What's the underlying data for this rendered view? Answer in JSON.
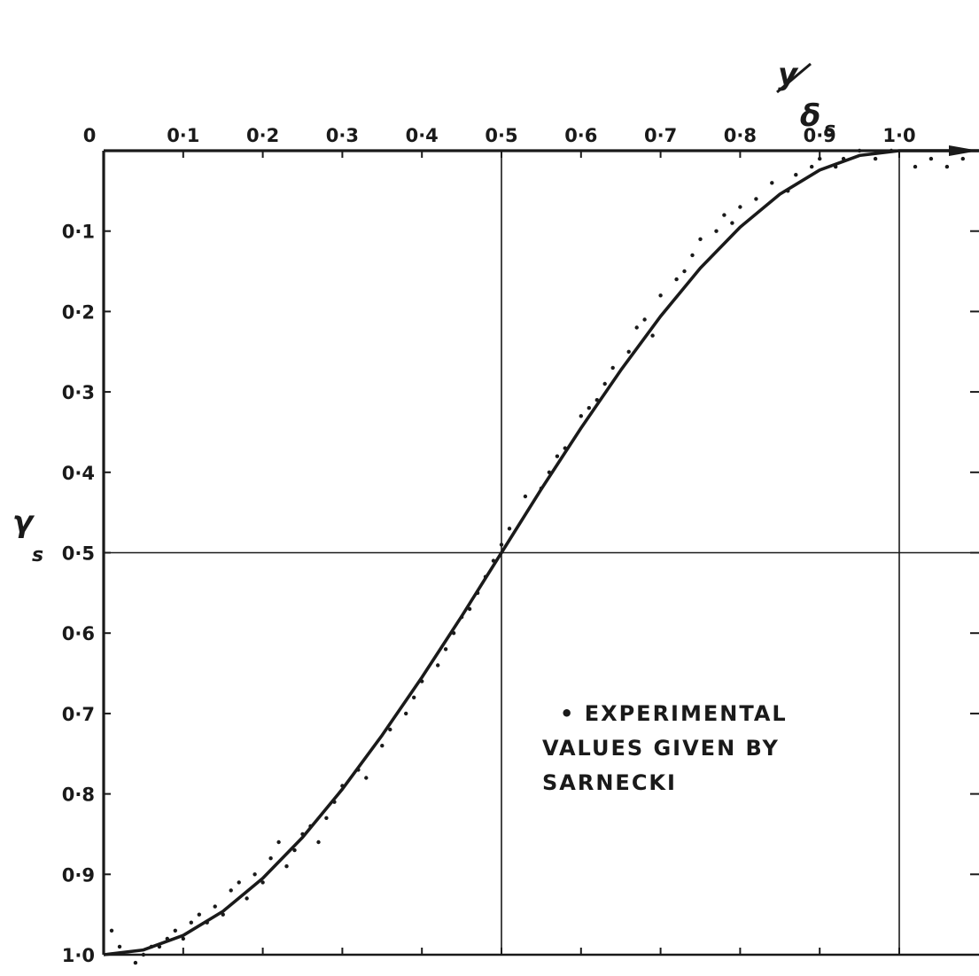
{
  "chart_data": {
    "type": "scatter",
    "x_axis": {
      "label_numerator": "y",
      "label_denominator": "δ",
      "label_subscript": "s",
      "range": [
        0,
        1.1
      ],
      "ticks": [
        "0",
        "0·1",
        "0·2",
        "0·3",
        "0·4",
        "0·5",
        "0·6",
        "0·7",
        "0·8",
        "0·9",
        "1·0"
      ],
      "tick_values": [
        0,
        0.1,
        0.2,
        0.3,
        0.4,
        0.5,
        0.6,
        0.7,
        0.8,
        0.9,
        1.0
      ],
      "position": "top"
    },
    "y_axis": {
      "label": "γ",
      "label_subscript": "s",
      "range": [
        0,
        1.0
      ],
      "inverted": true,
      "ticks": [
        "0·1",
        "0·2",
        "0·3",
        "0·4",
        "0·5",
        "0·6",
        "0·7",
        "0·8",
        "0·9",
        "1·0"
      ],
      "tick_values": [
        0.1,
        0.2,
        0.3,
        0.4,
        0.5,
        0.6,
        0.7,
        0.8,
        0.9,
        1.0
      ]
    },
    "reference_lines": {
      "x": [
        0.5,
        1.0
      ],
      "y": [
        0.5
      ]
    },
    "annotation": [
      "• EXPERIMENTAL",
      "VALUES GIVEN BY",
      "SARNECKI"
    ],
    "series": [
      {
        "kind": "curve",
        "x": [
          0.0,
          0.05,
          0.1,
          0.15,
          0.2,
          0.25,
          0.3,
          0.35,
          0.4,
          0.45,
          0.5,
          0.55,
          0.6,
          0.65,
          0.7,
          0.75,
          0.8,
          0.85,
          0.9,
          0.95,
          1.0,
          1.1
        ],
        "y": [
          1.0,
          0.994,
          0.976,
          0.946,
          0.905,
          0.854,
          0.794,
          0.727,
          0.655,
          0.579,
          0.5,
          0.421,
          0.345,
          0.273,
          0.206,
          0.146,
          0.095,
          0.054,
          0.024,
          0.006,
          0.0,
          0.0
        ]
      },
      {
        "kind": "points",
        "name": "EXPERIMENTAL VALUES GIVEN BY SARNECKI",
        "x": [
          0.01,
          0.02,
          0.04,
          0.05,
          0.06,
          0.07,
          0.08,
          0.09,
          0.1,
          0.11,
          0.12,
          0.13,
          0.14,
          0.15,
          0.16,
          0.17,
          0.18,
          0.19,
          0.2,
          0.21,
          0.22,
          0.23,
          0.24,
          0.25,
          0.26,
          0.27,
          0.28,
          0.29,
          0.3,
          0.32,
          0.33,
          0.35,
          0.36,
          0.38,
          0.39,
          0.4,
          0.42,
          0.43,
          0.44,
          0.45,
          0.46,
          0.47,
          0.48,
          0.49,
          0.5,
          0.51,
          0.53,
          0.55,
          0.56,
          0.57,
          0.58,
          0.6,
          0.61,
          0.62,
          0.63,
          0.64,
          0.66,
          0.67,
          0.68,
          0.69,
          0.7,
          0.72,
          0.73,
          0.74,
          0.75,
          0.77,
          0.78,
          0.79,
          0.8,
          0.82,
          0.84,
          0.86,
          0.87,
          0.89,
          0.9,
          0.92,
          0.93,
          0.95,
          0.97,
          0.99,
          1.02,
          1.04,
          1.06,
          1.08
        ],
        "y": [
          0.97,
          0.99,
          1.01,
          1.0,
          0.99,
          0.99,
          0.98,
          0.97,
          0.98,
          0.96,
          0.95,
          0.96,
          0.94,
          0.95,
          0.92,
          0.91,
          0.93,
          0.9,
          0.91,
          0.88,
          0.86,
          0.89,
          0.87,
          0.85,
          0.84,
          0.86,
          0.83,
          0.81,
          0.79,
          0.77,
          0.78,
          0.74,
          0.72,
          0.7,
          0.68,
          0.66,
          0.64,
          0.62,
          0.6,
          0.58,
          0.57,
          0.55,
          0.53,
          0.51,
          0.49,
          0.47,
          0.43,
          0.42,
          0.4,
          0.38,
          0.37,
          0.33,
          0.32,
          0.31,
          0.29,
          0.27,
          0.25,
          0.22,
          0.21,
          0.23,
          0.18,
          0.16,
          0.15,
          0.13,
          0.11,
          0.1,
          0.08,
          0.09,
          0.07,
          0.06,
          0.04,
          0.05,
          0.03,
          0.02,
          0.01,
          0.02,
          0.01,
          0.0,
          0.01,
          0.0,
          0.02,
          0.01,
          0.02,
          0.01
        ]
      }
    ]
  }
}
